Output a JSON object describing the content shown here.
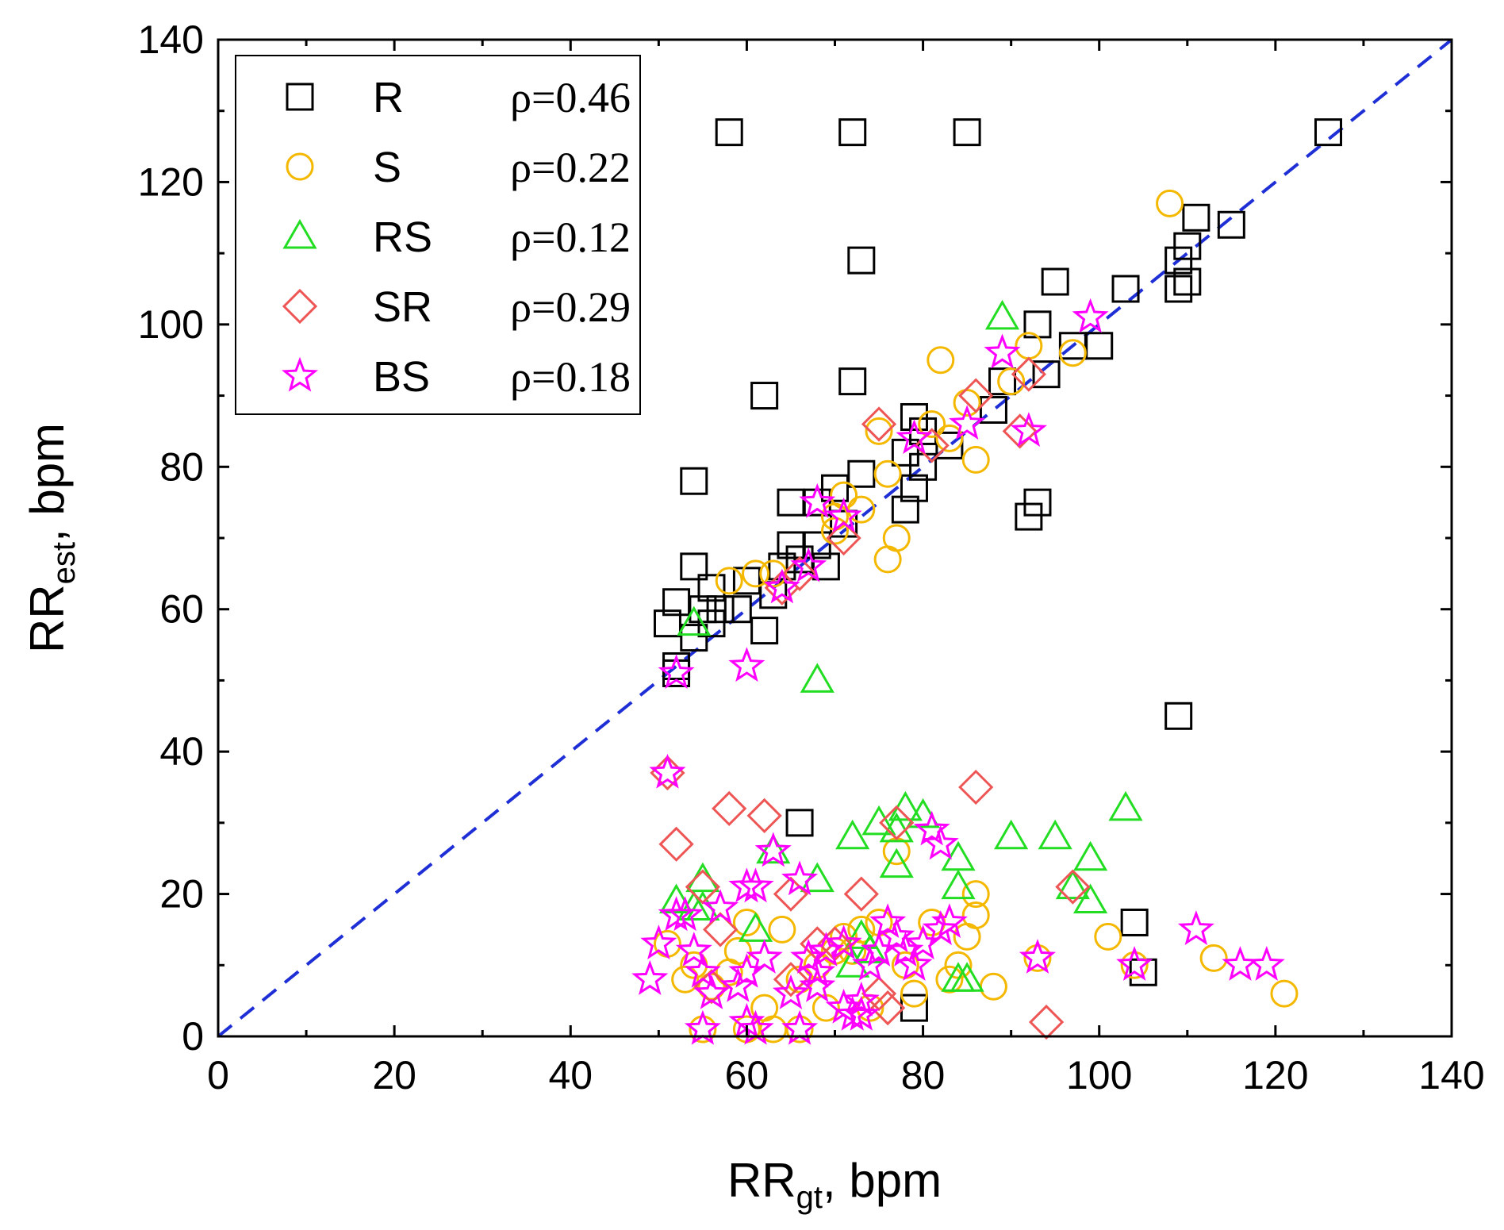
{
  "chart_data": {
    "type": "scatter",
    "xlabel": {
      "main": "RR",
      "sub": "gt",
      "unit": ", bpm"
    },
    "ylabel": {
      "main": "RR",
      "sub": "est",
      "unit": ", bpm"
    },
    "xlim": [
      0,
      140
    ],
    "ylim": [
      0,
      140
    ],
    "x_ticks": [
      "0",
      "20",
      "40",
      "60",
      "80",
      "100",
      "120",
      "140"
    ],
    "y_ticks": [
      "0",
      "20",
      "40",
      "60",
      "80",
      "100",
      "120",
      "140"
    ],
    "grid": false,
    "legend_position": "top-left",
    "reference_line": {
      "name": "identity",
      "color": "#1f2fd6",
      "style": "dashed",
      "from": [
        0,
        0
      ],
      "to": [
        140,
        140
      ]
    },
    "series": [
      {
        "name": "R",
        "rho": "ρ=0.46",
        "marker": "square",
        "color": "#000000",
        "points": [
          [
            58,
            127
          ],
          [
            72,
            127
          ],
          [
            85,
            127
          ],
          [
            126,
            127
          ],
          [
            111,
            115
          ],
          [
            115,
            114
          ],
          [
            110,
            111
          ],
          [
            109,
            109
          ],
          [
            73,
            109
          ],
          [
            95,
            106
          ],
          [
            103,
            105
          ],
          [
            110,
            106
          ],
          [
            109,
            105
          ],
          [
            93,
            100
          ],
          [
            100,
            97
          ],
          [
            97,
            97
          ],
          [
            94,
            93
          ],
          [
            89,
            92
          ],
          [
            72,
            92
          ],
          [
            62,
            90
          ],
          [
            88,
            88
          ],
          [
            79,
            87
          ],
          [
            80,
            85
          ],
          [
            83,
            83
          ],
          [
            78,
            82
          ],
          [
            80,
            80
          ],
          [
            73,
            79
          ],
          [
            54,
            78
          ],
          [
            70,
            77
          ],
          [
            79,
            77
          ],
          [
            68,
            75
          ],
          [
            65,
            75
          ],
          [
            78,
            74
          ],
          [
            93,
            75
          ],
          [
            92,
            73
          ],
          [
            71,
            72
          ],
          [
            68,
            69
          ],
          [
            65,
            69
          ],
          [
            66,
            67
          ],
          [
            64,
            66
          ],
          [
            54,
            66
          ],
          [
            69,
            66
          ],
          [
            60,
            64
          ],
          [
            56,
            63
          ],
          [
            63,
            62
          ],
          [
            52,
            61
          ],
          [
            55,
            60
          ],
          [
            57,
            60
          ],
          [
            59,
            60
          ],
          [
            56,
            58
          ],
          [
            51,
            58
          ],
          [
            54,
            56
          ],
          [
            62,
            57
          ],
          [
            52,
            52
          ],
          [
            52,
            51
          ],
          [
            109,
            45
          ],
          [
            66,
            30
          ],
          [
            104,
            16
          ],
          [
            105,
            9
          ],
          [
            79,
            4
          ]
        ]
      },
      {
        "name": "S",
        "rho": "ρ=0.22",
        "marker": "circle",
        "color": "#f5b800",
        "points": [
          [
            108,
            117
          ],
          [
            92,
            97
          ],
          [
            97,
            96
          ],
          [
            82,
            95
          ],
          [
            90,
            92
          ],
          [
            85,
            89
          ],
          [
            81,
            86
          ],
          [
            83,
            84
          ],
          [
            86,
            81
          ],
          [
            75,
            85
          ],
          [
            76,
            79
          ],
          [
            71,
            76
          ],
          [
            73,
            74
          ],
          [
            70,
            73
          ],
          [
            77,
            70
          ],
          [
            76,
            67
          ],
          [
            70,
            71
          ],
          [
            61,
            65
          ],
          [
            58,
            64
          ],
          [
            63,
            65
          ],
          [
            121,
            6
          ],
          [
            113,
            11
          ],
          [
            101,
            14
          ],
          [
            104,
            10
          ],
          [
            93,
            11
          ],
          [
            88,
            7
          ],
          [
            86,
            20
          ],
          [
            86,
            17
          ],
          [
            85,
            14
          ],
          [
            84,
            10
          ],
          [
            81,
            16
          ],
          [
            83,
            8
          ],
          [
            79,
            6
          ],
          [
            77,
            26
          ],
          [
            78,
            10
          ],
          [
            75,
            16
          ],
          [
            73,
            15
          ],
          [
            72,
            12
          ],
          [
            71,
            14
          ],
          [
            70,
            12
          ],
          [
            68,
            10
          ],
          [
            66,
            8
          ],
          [
            64,
            15
          ],
          [
            62,
            4
          ],
          [
            60,
            16
          ],
          [
            58,
            9
          ],
          [
            56,
            7
          ],
          [
            54,
            10
          ],
          [
            53,
            8
          ],
          [
            55,
            1
          ],
          [
            63,
            1
          ],
          [
            66,
            1
          ],
          [
            60,
            1
          ],
          [
            51,
            13
          ],
          [
            59,
            12
          ],
          [
            69,
            4
          ],
          [
            74,
            4
          ]
        ]
      },
      {
        "name": "RS",
        "rho": "ρ=0.12",
        "marker": "triangle",
        "color": "#22dd22",
        "points": [
          [
            89,
            101
          ],
          [
            54,
            58
          ],
          [
            68,
            50
          ],
          [
            103,
            32
          ],
          [
            78,
            32
          ],
          [
            80,
            31
          ],
          [
            75,
            30
          ],
          [
            77,
            29
          ],
          [
            72,
            28
          ],
          [
            90,
            28
          ],
          [
            95,
            28
          ],
          [
            99,
            25
          ],
          [
            84,
            25
          ],
          [
            77,
            24
          ],
          [
            63,
            26
          ],
          [
            68,
            22
          ],
          [
            55,
            22
          ],
          [
            97,
            21
          ],
          [
            99,
            19
          ],
          [
            84,
            21
          ],
          [
            52,
            19
          ],
          [
            55,
            18
          ],
          [
            54,
            18
          ],
          [
            61,
            15
          ],
          [
            73,
            14
          ],
          [
            72,
            10
          ],
          [
            74,
            12
          ],
          [
            84,
            8
          ],
          [
            85,
            8
          ]
        ]
      },
      {
        "name": "SR",
        "rho": "ρ=0.29",
        "marker": "diamond",
        "color": "#ee5555",
        "points": [
          [
            86,
            90
          ],
          [
            75,
            86
          ],
          [
            81,
            83
          ],
          [
            92,
            93
          ],
          [
            91,
            85
          ],
          [
            71,
            70
          ],
          [
            64,
            63
          ],
          [
            66,
            65
          ],
          [
            51,
            37
          ],
          [
            86,
            35
          ],
          [
            58,
            32
          ],
          [
            62,
            31
          ],
          [
            52,
            27
          ],
          [
            77,
            30
          ],
          [
            73,
            20
          ],
          [
            65,
            20
          ],
          [
            97,
            21
          ],
          [
            55,
            21
          ],
          [
            57,
            15
          ],
          [
            70,
            13
          ],
          [
            68,
            13
          ],
          [
            65,
            8
          ],
          [
            56,
            7
          ],
          [
            76,
            4
          ],
          [
            75,
            6
          ],
          [
            94,
            2
          ]
        ]
      },
      {
        "name": "BS",
        "rho": "ρ=0.18",
        "marker": "star",
        "color": "#ff00ff",
        "points": [
          [
            99,
            101
          ],
          [
            89,
            96
          ],
          [
            92,
            85
          ],
          [
            85,
            86
          ],
          [
            79,
            84
          ],
          [
            68,
            75
          ],
          [
            71,
            73
          ],
          [
            67,
            66
          ],
          [
            64,
            63
          ],
          [
            60,
            52
          ],
          [
            52,
            51
          ],
          [
            51,
            37
          ],
          [
            82,
            27
          ],
          [
            81,
            29
          ],
          [
            63,
            26
          ],
          [
            60,
            21
          ],
          [
            66,
            22
          ],
          [
            61,
            21
          ],
          [
            52,
            17
          ],
          [
            53,
            17
          ],
          [
            57,
            18
          ],
          [
            54,
            12
          ],
          [
            50,
            13
          ],
          [
            49,
            8
          ],
          [
            55,
            9
          ],
          [
            56,
            6
          ],
          [
            60,
            9
          ],
          [
            59,
            7
          ],
          [
            62,
            11
          ],
          [
            60,
            2
          ],
          [
            61,
            1
          ],
          [
            55,
            1
          ],
          [
            66,
            1
          ],
          [
            67,
            11
          ],
          [
            65,
            6
          ],
          [
            68,
            9
          ],
          [
            68,
            7
          ],
          [
            69,
            12
          ],
          [
            71,
            13
          ],
          [
            72,
            3
          ],
          [
            73,
            5
          ],
          [
            74,
            10
          ],
          [
            75,
            12
          ],
          [
            76,
            16
          ],
          [
            77,
            14
          ],
          [
            78,
            12
          ],
          [
            79,
            10
          ],
          [
            80,
            13
          ],
          [
            82,
            15
          ],
          [
            83,
            16
          ],
          [
            71,
            4
          ],
          [
            73,
            3
          ],
          [
            93,
            11
          ],
          [
            104,
            10
          ],
          [
            111,
            15
          ],
          [
            116,
            10
          ],
          [
            119,
            10
          ]
        ]
      }
    ]
  }
}
